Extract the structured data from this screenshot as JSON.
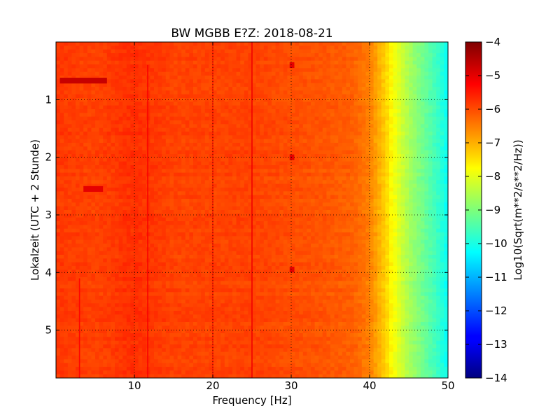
{
  "chart_data": {
    "type": "heatmap",
    "title": "BW MGBB E?Z: 2018-08-21",
    "xlabel": "Frequency [Hz]",
    "ylabel": "Lokalzeit (UTC + 2 Stunde)",
    "colorbar_label": "Log10(Sqrt(m**2/s**2/Hz))",
    "xlim": [
      0,
      50
    ],
    "ylim": [
      0,
      5.83
    ],
    "y_inverted": true,
    "x_ticks": [
      10,
      20,
      30,
      40,
      50
    ],
    "y_ticks": [
      1,
      2,
      3,
      4,
      5
    ],
    "clim": [
      -14,
      -4
    ],
    "colorbar_ticks": [
      -4,
      -5,
      -6,
      -7,
      -8,
      -9,
      -10,
      -11,
      -12,
      -13,
      -14
    ],
    "colormap": "jet",
    "grid": true,
    "spectral_profile": {
      "frequency_hz": [
        0,
        5,
        10,
        15,
        20,
        25,
        30,
        35,
        38,
        40,
        41,
        42,
        43,
        44,
        45,
        46,
        47,
        48,
        49,
        50
      ],
      "log10_amplitude": [
        -5.8,
        -5.9,
        -5.7,
        -5.9,
        -5.9,
        -5.9,
        -6.0,
        -6.1,
        -6.2,
        -6.5,
        -6.9,
        -7.3,
        -7.8,
        -8.2,
        -8.6,
        -8.9,
        -9.2,
        -9.5,
        -9.8,
        -10.2
      ]
    },
    "features": [
      {
        "kind": "line",
        "frequency_hz": 11.7,
        "time_range": [
          0.4,
          5.83
        ],
        "log10_amplitude": -5.2
      },
      {
        "kind": "line",
        "frequency_hz": 25.0,
        "time_range": [
          0,
          5.83
        ],
        "log10_amplitude": -5.1
      },
      {
        "kind": "line",
        "frequency_hz": 20.0,
        "time_range": [
          0,
          5.83
        ],
        "log10_amplitude": -5.5
      },
      {
        "kind": "line",
        "frequency_hz": 3.0,
        "time_range": [
          4.1,
          5.83
        ],
        "log10_amplitude": -5.3
      },
      {
        "kind": "burst",
        "frequency_range": [
          0.5,
          6.5
        ],
        "time_range": [
          0.62,
          0.72
        ],
        "log10_amplitude": -4.7
      },
      {
        "kind": "burst",
        "frequency_range": [
          3.5,
          6.0
        ],
        "time_range": [
          2.5,
          2.6
        ],
        "log10_amplitude": -5.0
      },
      {
        "kind": "spot",
        "frequency_range": [
          29.8,
          30.4
        ],
        "time_range": [
          0.35,
          0.45
        ],
        "log10_amplitude": -5.0
      },
      {
        "kind": "spot",
        "frequency_range": [
          29.8,
          30.4
        ],
        "time_range": [
          1.95,
          2.05
        ],
        "log10_amplitude": -5.0
      },
      {
        "kind": "spot",
        "frequency_range": [
          29.8,
          30.4
        ],
        "time_range": [
          3.9,
          4.0
        ],
        "log10_amplitude": -5.0
      }
    ]
  }
}
